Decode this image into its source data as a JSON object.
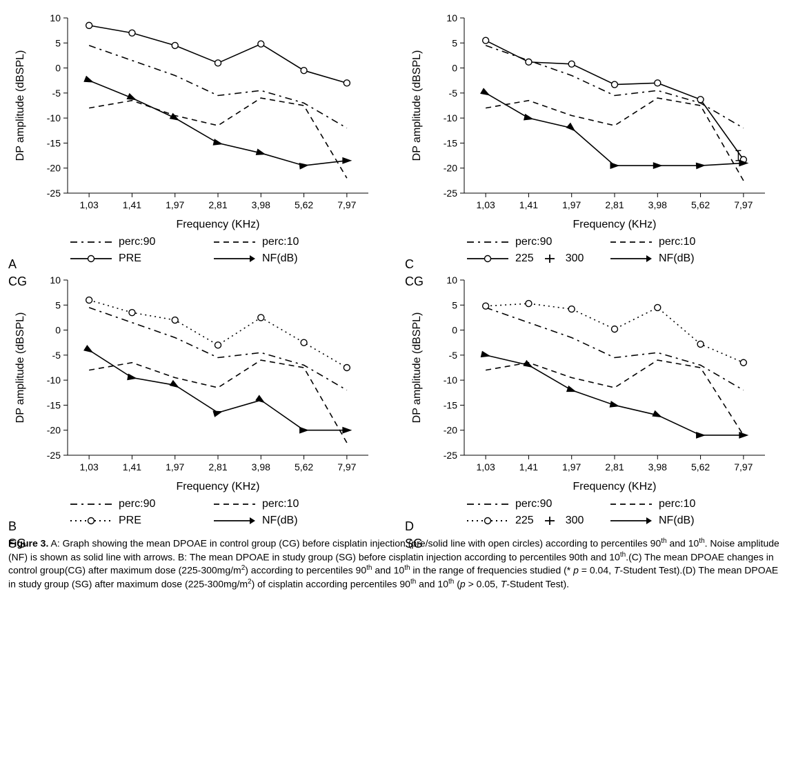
{
  "figure": {
    "background_color": "#ffffff",
    "stroke_color": "#000000",
    "label_fontsize": 14,
    "axis_title_fontsize": 16,
    "legend_fontsize": 16,
    "panel_label_fontsize": 18,
    "caption_fontsize": 14,
    "x_categories": [
      "1,03",
      "1,41",
      "1,97",
      "2,81",
      "3,98",
      "5,62",
      "7,97"
    ],
    "x_title": "Frequency (KHz)",
    "y_title": "DP amplitude (dBSPL)",
    "y_min": -25,
    "y_max": 10,
    "y_tick_step": 5,
    "line_widths": {
      "main": 1.6,
      "dashdot": 1.6,
      "dash": 1.6,
      "arrow": 1.6
    },
    "dash_patterns": {
      "solid": "",
      "dashdot": "10 6 3 6",
      "dash": "8 6",
      "dot": "2 5"
    },
    "marker": {
      "circle_r": 4.5,
      "arrow_size": 6
    },
    "panels": {
      "A": {
        "panel_letter": "A",
        "group_label": "CG",
        "legend": {
          "perc90": "perc:90",
          "perc10": "perc:10",
          "main": "PRE",
          "main_style": "solid_circle",
          "nf": "NF(dB)"
        },
        "series": {
          "perc90": {
            "style": "dashdot",
            "values": [
              4.5,
              1.5,
              -1.5,
              -5.5,
              -4.5,
              -7.0,
              -12.0
            ]
          },
          "perc10": {
            "style": "dash",
            "values": [
              -8.0,
              -6.5,
              -9.5,
              -11.5,
              -6.0,
              -7.5,
              -22.0
            ]
          },
          "main": {
            "style": "solid",
            "marker": "circle",
            "values": [
              8.5,
              7.0,
              4.5,
              1.0,
              4.8,
              -0.5,
              -3.0
            ]
          },
          "nf": {
            "style": "solid",
            "marker": "arrow",
            "values": [
              -2.5,
              -6.0,
              -10.0,
              -15.0,
              -17.0,
              -19.5,
              -18.5
            ]
          }
        }
      },
      "B": {
        "panel_letter": "B",
        "group_label": "SG",
        "legend": {
          "perc90": "perc:90",
          "perc10": "perc:10",
          "main": "PRE",
          "main_style": "dot_circle",
          "nf": "NF(dB)"
        },
        "series": {
          "perc90": {
            "style": "dashdot",
            "values": [
              4.5,
              1.5,
              -1.5,
              -5.5,
              -4.5,
              -7.0,
              -12.0
            ]
          },
          "perc10": {
            "style": "dash",
            "values": [
              -8.0,
              -6.5,
              -9.5,
              -11.5,
              -6.0,
              -7.5,
              -22.5
            ]
          },
          "main": {
            "style": "dot",
            "marker": "circle",
            "values": [
              6.0,
              3.5,
              2.0,
              -3.0,
              2.5,
              -2.5,
              -7.5
            ]
          },
          "nf": {
            "style": "solid",
            "marker": "arrow",
            "values": [
              -4.0,
              -9.5,
              -11.0,
              -16.5,
              -14.0,
              -20.0,
              -20.0
            ]
          }
        }
      },
      "C": {
        "panel_letter": "C",
        "group_label": "CG",
        "legend": {
          "perc90": "perc:90",
          "perc10": "perc:10",
          "main": "225",
          "main_extra": "300",
          "main_style": "solid_circle_plus_tick",
          "nf": "NF(dB)"
        },
        "series": {
          "perc90": {
            "style": "dashdot",
            "values": [
              4.5,
              1.5,
              -1.5,
              -5.5,
              -4.5,
              -7.0,
              -12.0
            ]
          },
          "perc10": {
            "style": "dash",
            "values": [
              -8.0,
              -6.5,
              -9.5,
              -11.5,
              -6.0,
              -7.5,
              -22.5
            ]
          },
          "main": {
            "style": "solid",
            "marker": "circle",
            "values": [
              5.5,
              1.2,
              0.8,
              -3.3,
              -3.0,
              -6.3,
              -18.3
            ]
          },
          "nf": {
            "style": "solid",
            "marker": "arrow",
            "values": [
              -5.0,
              -10.0,
              -12.0,
              -19.5,
              -19.5,
              -19.5,
              -19.0
            ]
          },
          "err_point": {
            "x_index": 6,
            "y": -17.5,
            "err": 1.0
          }
        }
      },
      "D": {
        "panel_letter": "D",
        "group_label": "SG",
        "legend": {
          "perc90": "perc:90",
          "perc10": "perc:10",
          "main": "225",
          "main_extra": "300",
          "main_style": "dot_circle_plus_tick",
          "nf": "NF(dB)"
        },
        "series": {
          "perc90": {
            "style": "dashdot",
            "values": [
              4.5,
              1.5,
              -1.5,
              -5.5,
              -4.5,
              -7.0,
              -12.0
            ]
          },
          "perc10": {
            "style": "dash",
            "values": [
              -8.0,
              -6.5,
              -9.5,
              -11.5,
              -6.0,
              -7.5,
              -21.0
            ]
          },
          "main": {
            "style": "dot",
            "marker": "circle",
            "values": [
              4.8,
              5.3,
              4.2,
              0.2,
              4.5,
              -2.8,
              -6.5
            ]
          },
          "nf": {
            "style": "solid",
            "marker": "arrow",
            "values": [
              -5.0,
              -7.0,
              -12.0,
              -15.0,
              -17.0,
              -21.0,
              -21.0
            ]
          }
        }
      }
    }
  },
  "caption": {
    "label": "Figure 3.",
    "text_parts": {
      "a1": " A: Graph showing the mean DPOAE in control group (CG) before cisplatin injection (pre/solid line with open circles) according to percentiles 90",
      "th": "th",
      "a2": " and 10",
      "a3": ". Noise amplitude (NF) is shown as solid line with arrows. B: The mean DPOAE in study group (SG) before cisplatin injection according to percentiles 90th and 10",
      "a4": ".(C) The mean DPOAE changes in control group(CG) after maximum dose (225-300mg/m",
      "sq": "2",
      "a5": ") according to percentiles 90",
      "a6": " and 10",
      "a7": " in the range of frequencies studied (* ",
      "p": "p",
      "a8": " = 0.04, ",
      "T": "T",
      "a9": "-Student Test).(D) The mean DPOAE in study group (SG) after maximum dose (225-300mg/m",
      "a10": ") of cisplatin according percentiles 90",
      "a11": " and 10",
      "a12": " (",
      "a13": " > 0.05, ",
      "a14": "-Student Test)."
    }
  }
}
